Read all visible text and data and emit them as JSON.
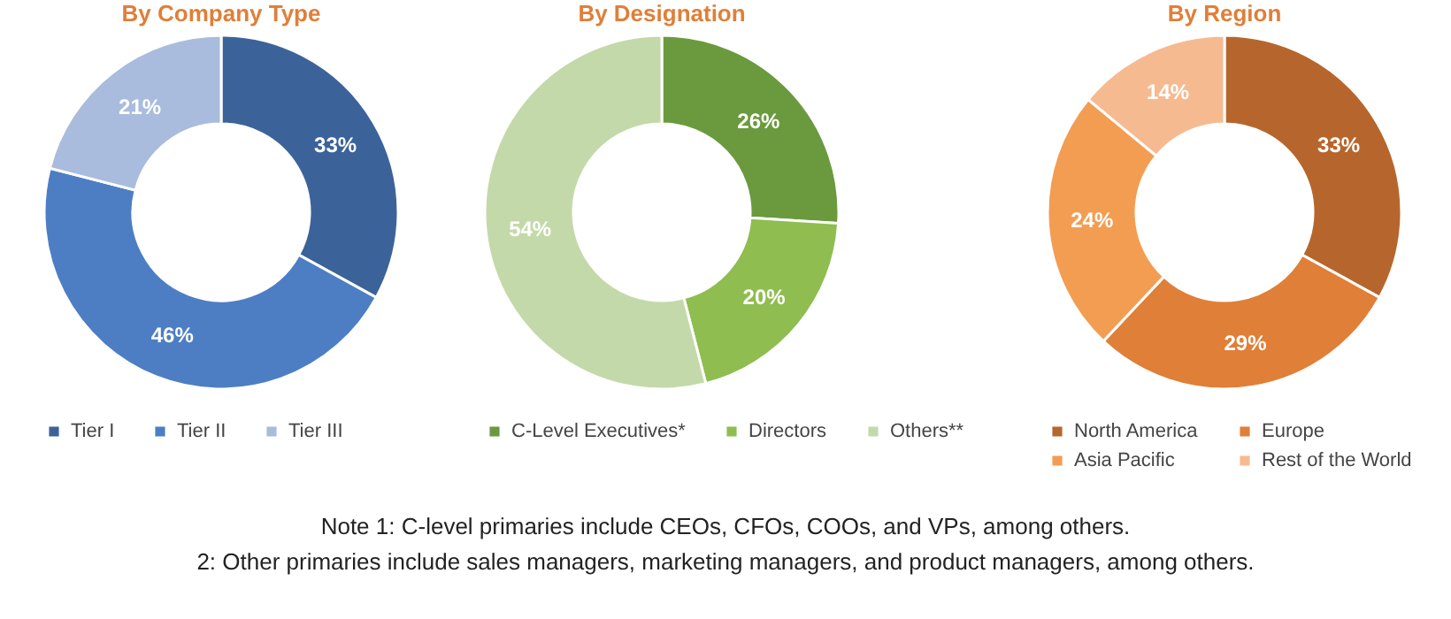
{
  "chart_data": [
    {
      "type": "donut",
      "title": "By Company Type",
      "categories": [
        "Tier I",
        "Tier II",
        "Tier III"
      ],
      "values": [
        33,
        46,
        21
      ],
      "value_labels": [
        "33%",
        "46%",
        "21%"
      ],
      "colors": [
        "#3c6399",
        "#4d7ec4",
        "#a9bcdd"
      ],
      "legend": "bottom"
    },
    {
      "type": "donut",
      "title": "By Designation",
      "categories": [
        "C-Level Executives*",
        "Directors",
        "Others**"
      ],
      "values": [
        26,
        20,
        54
      ],
      "value_labels": [
        "26%",
        "20%",
        "54%"
      ],
      "colors": [
        "#6a9a3d",
        "#8fbd50",
        "#c4d9a9"
      ],
      "legend": "bottom",
      "annotations": [
        "Note 1: C-level primaries include CEOs, CFOs, COOs, and VPs, among others.",
        "2: Other primaries include sales managers, marketing managers, and product managers, among others."
      ]
    },
    {
      "type": "donut",
      "title": "By Region",
      "categories": [
        "North America",
        "Europe",
        "Asia Pacific",
        "Rest of the World"
      ],
      "values": [
        33,
        29,
        24,
        14
      ],
      "value_labels": [
        "33%",
        "29%",
        "24%",
        "14%"
      ],
      "colors": [
        "#b6662c",
        "#e07f38",
        "#f39d52",
        "#f6ba90"
      ],
      "legend": "bottom"
    }
  ]
}
